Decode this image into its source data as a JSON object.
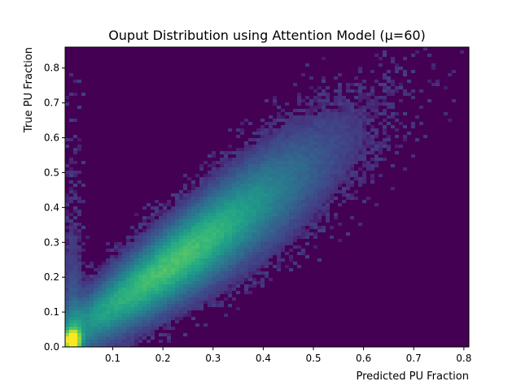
{
  "chart_data": {
    "type": "heatmap",
    "title": "Ouput Distribution using Attention Model (μ=60)",
    "xlabel": "Predicted PU Fraction",
    "ylabel": "True PU Fraction",
    "xlim": [
      0.005,
      0.81
    ],
    "ylim": [
      0.0,
      0.86
    ],
    "x_ticks": [
      0.1,
      0.2,
      0.3,
      0.4,
      0.5,
      0.6,
      0.7,
      0.8
    ],
    "x_tick_labels": [
      "0.1",
      "0.2",
      "0.3",
      "0.4",
      "0.5",
      "0.6",
      "0.7",
      "0.8"
    ],
    "y_ticks": [
      0.0,
      0.1,
      0.2,
      0.3,
      0.4,
      0.5,
      0.6,
      0.7,
      0.8
    ],
    "y_tick_labels": [
      "0.0",
      "0.1",
      "0.2",
      "0.3",
      "0.4",
      "0.5",
      "0.6",
      "0.7",
      "0.8"
    ],
    "colormap": "viridis",
    "background_color": "#440154",
    "grid": false,
    "density_structure": {
      "peak": {
        "x": 0.02,
        "y": 0.02
      },
      "ridge": {
        "slope": 1.0,
        "intercept": 0.02
      },
      "vertical_branch": {
        "x": 0.02,
        "y_range": [
          0.0,
          0.35
        ]
      }
    }
  }
}
